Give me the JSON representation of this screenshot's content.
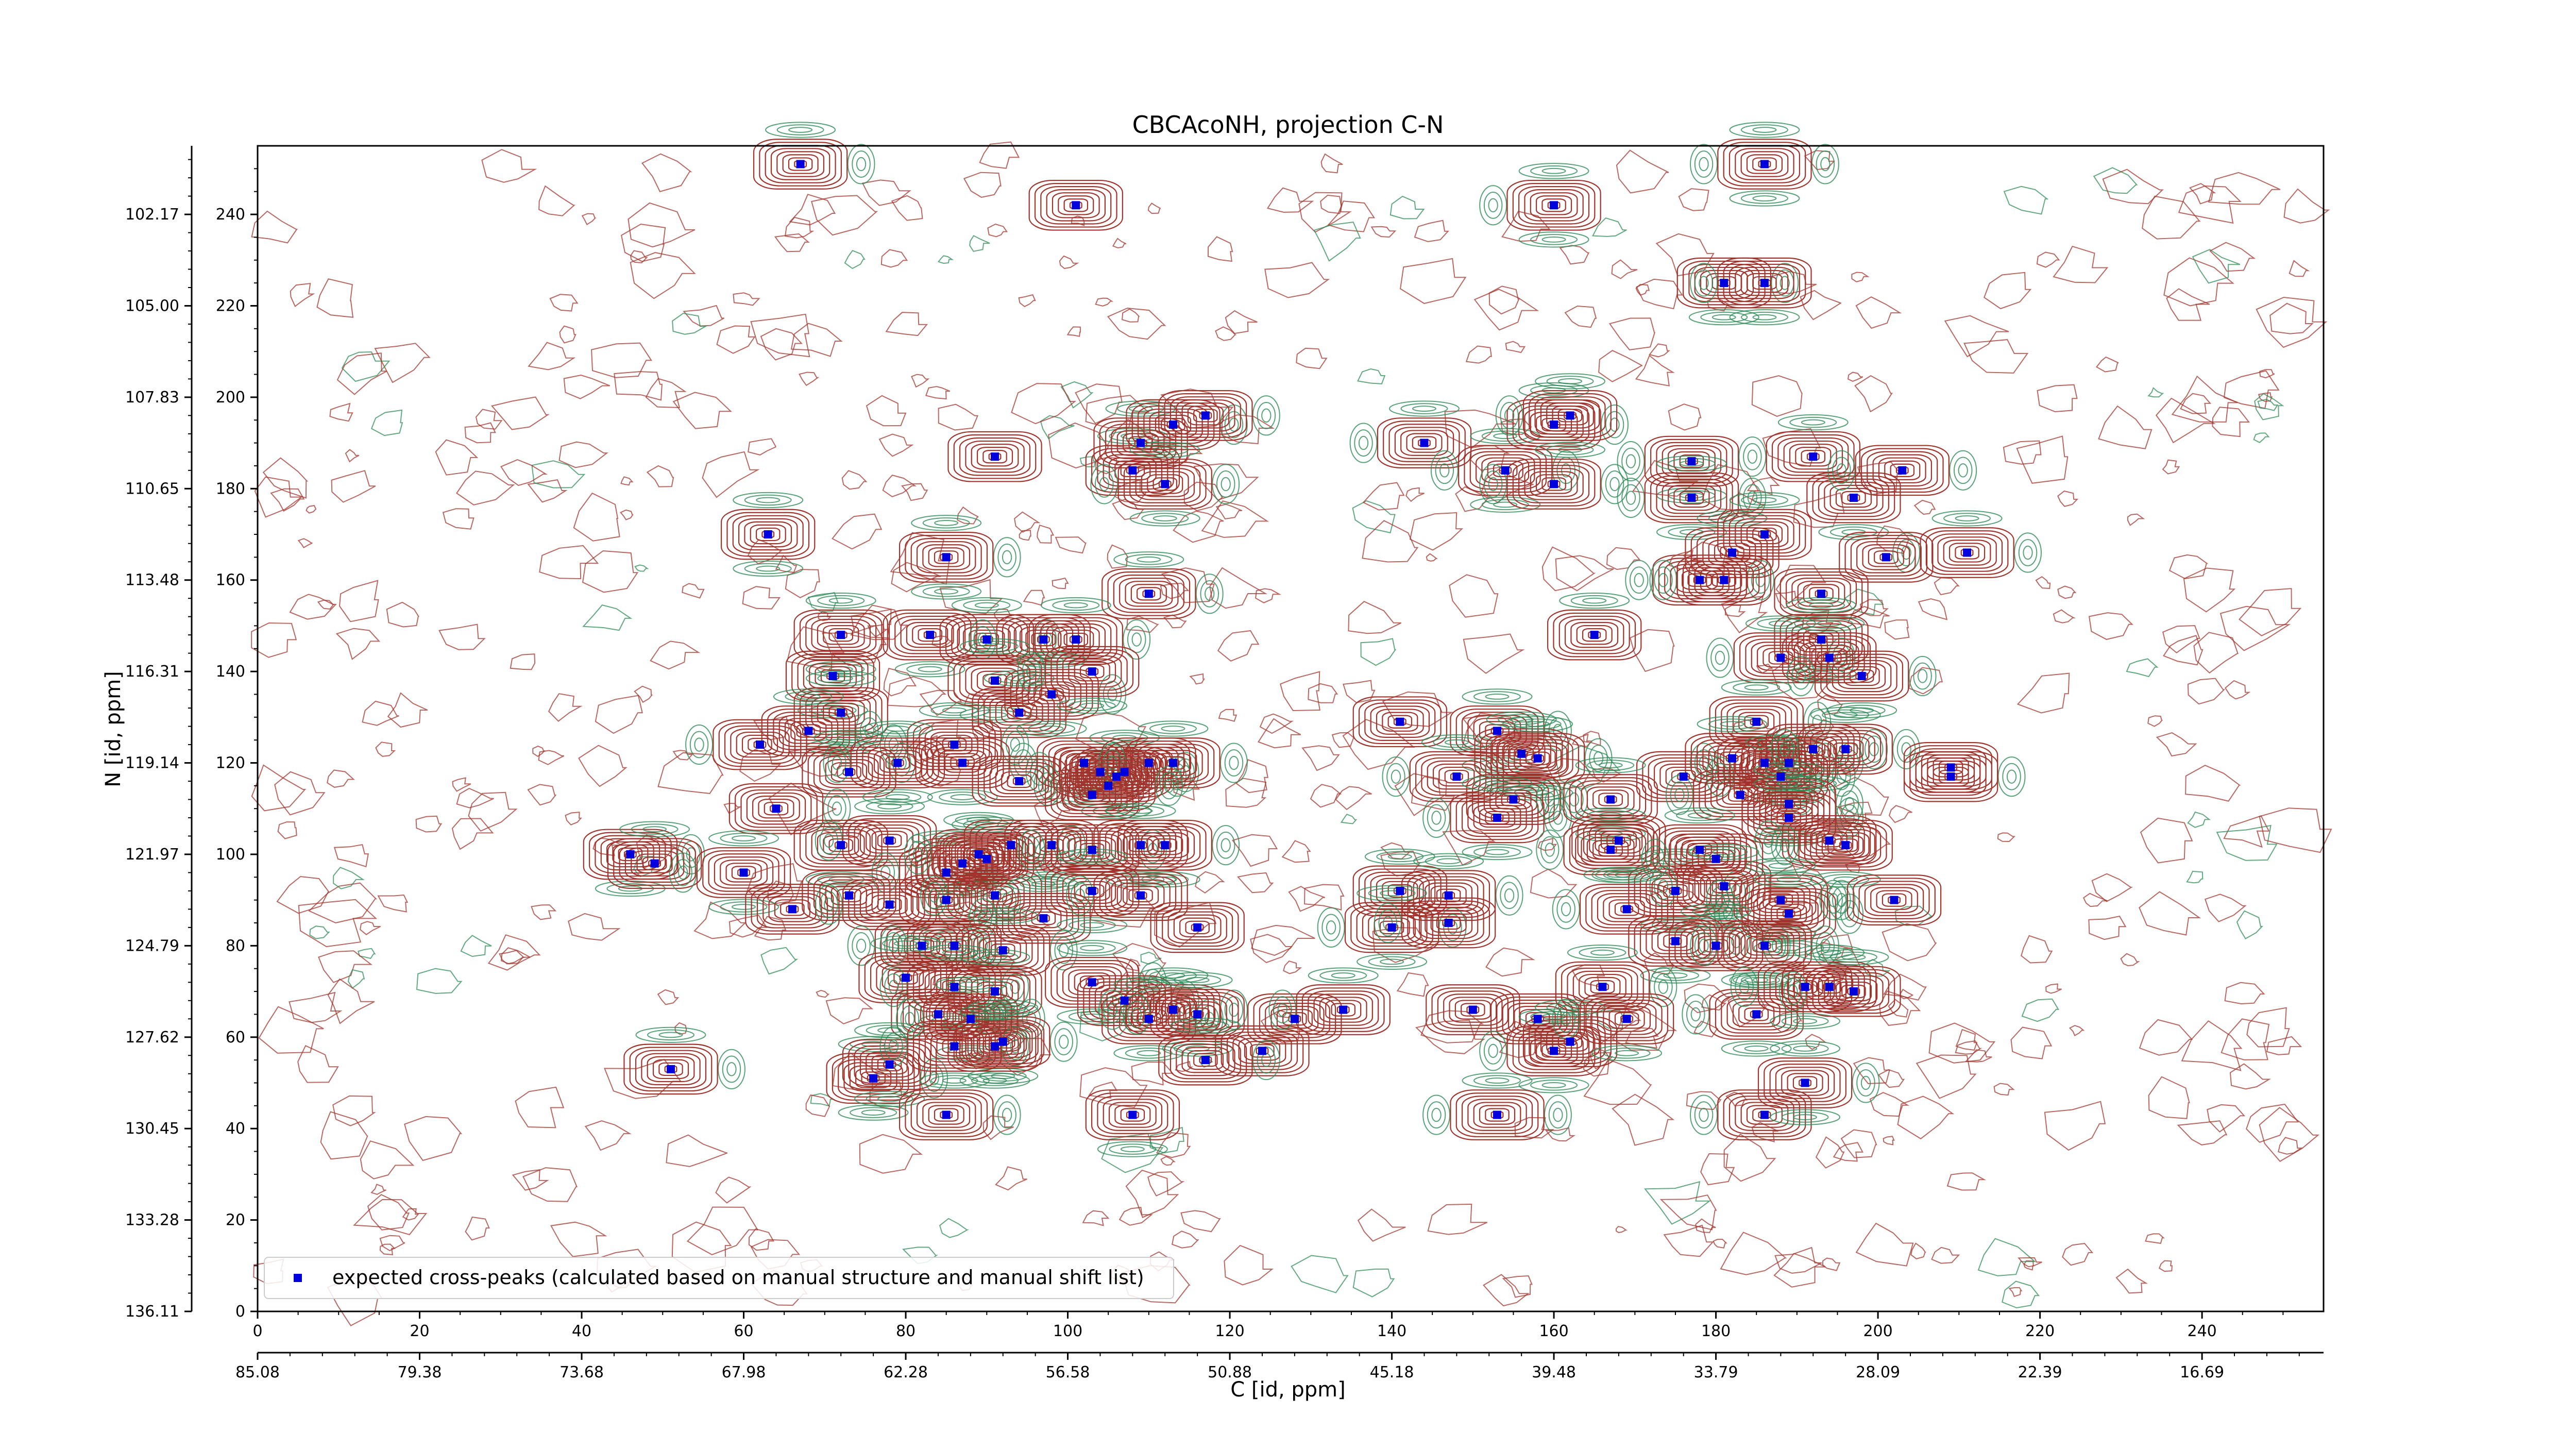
{
  "chart_data": {
    "type": "scatter",
    "title": "CBCAcoNH, projection C-N",
    "xlabel": "C [id, ppm]",
    "ylabel": "N [id, ppm]",
    "xlim": [
      0,
      255
    ],
    "ylim": [
      0,
      255
    ],
    "x_ticks": [
      "0",
      "20",
      "40",
      "60",
      "80",
      "100",
      "120",
      "140",
      "160",
      "180",
      "200",
      "220",
      "240"
    ],
    "y_ticks": [
      "0",
      "20",
      "40",
      "60",
      "80",
      "100",
      "120",
      "140",
      "160",
      "180",
      "200",
      "220",
      "240"
    ],
    "x_ppm_ticks": [
      "85.08",
      "79.38",
      "73.68",
      "67.98",
      "62.28",
      "56.58",
      "50.88",
      "45.18",
      "39.48",
      "33.79",
      "28.09",
      "22.39",
      "16.69"
    ],
    "y_ppm_ticks": [
      "136.11",
      "133.28",
      "130.45",
      "127.62",
      "124.79",
      "121.97",
      "119.14",
      "116.31",
      "113.48",
      "110.65",
      "107.83",
      "105.00",
      "102.17"
    ],
    "legend": {
      "label": "expected cross-peaks (calculated based on manual structure and manual shift list)",
      "position": "lower-left"
    },
    "colors": {
      "positive_contours": "#a0342c",
      "negative_contours": "#2e8b57",
      "peaks": "#0000dd"
    },
    "series": [
      {
        "name": "expected cross-peaks (calculated based on manual structure and manual shift list)",
        "points": [
          [
            67,
            251
          ],
          [
            101,
            242
          ],
          [
            160,
            242
          ],
          [
            186,
            251
          ],
          [
            181,
            225
          ],
          [
            186,
            225
          ],
          [
            91,
            187
          ],
          [
            108,
            184
          ],
          [
            109,
            190
          ],
          [
            113,
            194
          ],
          [
            117,
            196
          ],
          [
            112,
            181
          ],
          [
            144,
            190
          ],
          [
            154,
            184
          ],
          [
            160,
            194
          ],
          [
            162,
            196
          ],
          [
            160,
            181
          ],
          [
            177,
            186
          ],
          [
            177,
            178
          ],
          [
            182,
            166
          ],
          [
            178,
            160
          ],
          [
            181,
            160
          ],
          [
            186,
            170
          ],
          [
            192,
            187
          ],
          [
            197,
            178
          ],
          [
            203,
            184
          ],
          [
            63,
            170
          ],
          [
            85,
            165
          ],
          [
            211,
            166
          ],
          [
            201,
            165
          ],
          [
            110,
            157
          ],
          [
            165,
            148
          ],
          [
            193,
            157
          ],
          [
            193,
            147
          ],
          [
            188,
            143
          ],
          [
            194,
            143
          ],
          [
            198,
            139
          ],
          [
            83,
            148
          ],
          [
            90,
            147
          ],
          [
            97,
            147
          ],
          [
            101,
            147
          ],
          [
            72,
            148
          ],
          [
            71,
            139
          ],
          [
            72,
            131
          ],
          [
            91,
            138
          ],
          [
            94,
            131
          ],
          [
            98,
            135
          ],
          [
            103,
            140
          ],
          [
            62,
            124
          ],
          [
            68,
            127
          ],
          [
            86,
            124
          ],
          [
            87,
            120
          ],
          [
            73,
            118
          ],
          [
            79,
            120
          ],
          [
            102,
            120
          ],
          [
            104,
            118
          ],
          [
            106,
            117
          ],
          [
            107,
            118
          ],
          [
            110,
            120
          ],
          [
            113,
            120
          ],
          [
            103,
            113
          ],
          [
            105,
            115
          ],
          [
            64,
            110
          ],
          [
            94,
            116
          ],
          [
            176,
            117
          ],
          [
            153,
            127
          ],
          [
            141,
            129
          ],
          [
            148,
            117
          ],
          [
            156,
            122
          ],
          [
            158,
            121
          ],
          [
            155,
            112
          ],
          [
            153,
            108
          ],
          [
            167,
            112
          ],
          [
            185,
            129
          ],
          [
            186,
            120
          ],
          [
            182,
            121
          ],
          [
            188,
            117
          ],
          [
            189,
            120
          ],
          [
            192,
            123
          ],
          [
            196,
            123
          ],
          [
            183,
            113
          ],
          [
            189,
            111
          ],
          [
            189,
            108
          ],
          [
            194,
            103
          ],
          [
            196,
            102
          ],
          [
            209,
            117
          ],
          [
            209,
            119
          ],
          [
            46,
            100
          ],
          [
            49,
            98
          ],
          [
            60,
            96
          ],
          [
            72,
            102
          ],
          [
            78,
            103
          ],
          [
            85,
            96
          ],
          [
            87,
            98
          ],
          [
            89,
            100
          ],
          [
            90,
            99
          ],
          [
            93,
            102
          ],
          [
            98,
            102
          ],
          [
            103,
            101
          ],
          [
            109,
            102
          ],
          [
            112,
            102
          ],
          [
            66,
            88
          ],
          [
            73,
            91
          ],
          [
            78,
            89
          ],
          [
            85,
            90
          ],
          [
            91,
            91
          ],
          [
            97,
            86
          ],
          [
            103,
            92
          ],
          [
            109,
            91
          ],
          [
            116,
            84
          ],
          [
            141,
            92
          ],
          [
            147,
            91
          ],
          [
            140,
            84
          ],
          [
            147,
            85
          ],
          [
            167,
            101
          ],
          [
            168,
            103
          ],
          [
            175,
            92
          ],
          [
            178,
            101
          ],
          [
            180,
            99
          ],
          [
            181,
            93
          ],
          [
            188,
            90
          ],
          [
            189,
            87
          ],
          [
            202,
            90
          ],
          [
            169,
            88
          ],
          [
            175,
            81
          ],
          [
            180,
            80
          ],
          [
            186,
            80
          ],
          [
            82,
            80
          ],
          [
            86,
            80
          ],
          [
            92,
            79
          ],
          [
            80,
            73
          ],
          [
            86,
            71
          ],
          [
            91,
            70
          ],
          [
            84,
            65
          ],
          [
            88,
            64
          ],
          [
            92,
            59
          ],
          [
            103,
            72
          ],
          [
            107,
            68
          ],
          [
            110,
            64
          ],
          [
            113,
            66
          ],
          [
            116,
            65
          ],
          [
            124,
            57
          ],
          [
            128,
            64
          ],
          [
            134,
            66
          ],
          [
            150,
            66
          ],
          [
            158,
            64
          ],
          [
            160,
            57
          ],
          [
            162,
            59
          ],
          [
            166,
            71
          ],
          [
            169,
            64
          ],
          [
            185,
            65
          ],
          [
            191,
            71
          ],
          [
            194,
            71
          ],
          [
            197,
            70
          ],
          [
            76,
            51
          ],
          [
            78,
            54
          ],
          [
            86,
            58
          ],
          [
            91,
            58
          ],
          [
            85,
            43
          ],
          [
            108,
            43
          ],
          [
            117,
            55
          ],
          [
            153,
            43
          ],
          [
            186,
            43
          ],
          [
            191,
            50
          ],
          [
            51,
            53
          ]
        ]
      }
    ]
  }
}
